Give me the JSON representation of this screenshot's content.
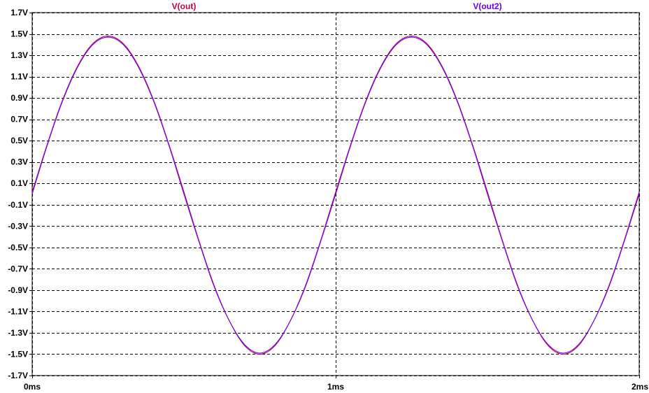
{
  "chart_data": {
    "type": "line",
    "title": "",
    "xlabel": "",
    "ylabel": "",
    "xlim": [
      0,
      2
    ],
    "ylim": [
      -1.7,
      1.7
    ],
    "x_unit": "ms",
    "y_unit": "V",
    "grid": true,
    "legend_position": "top",
    "x_ticks": [
      "0ms",
      "1ms",
      "2ms"
    ],
    "x_tick_values": [
      0,
      1,
      2
    ],
    "y_ticks": [
      "1.7V",
      "1.5V",
      "1.3V",
      "1.1V",
      "0.9V",
      "0.7V",
      "0.5V",
      "0.3V",
      "0.1V",
      "-0.1V",
      "-0.3V",
      "-0.5V",
      "-0.7V",
      "-0.9V",
      "-1.1V",
      "-1.3V",
      "-1.5V",
      "-1.7V"
    ],
    "y_tick_values": [
      1.7,
      1.5,
      1.3,
      1.1,
      0.9,
      0.7,
      0.5,
      0.3,
      0.1,
      -0.1,
      -0.3,
      -0.5,
      -0.7,
      -0.9,
      -1.1,
      -1.3,
      -1.5,
      -1.7
    ],
    "series": [
      {
        "name": "V(out)",
        "color": "#c0003c",
        "x": [
          0,
          0.05,
          0.1,
          0.15,
          0.2,
          0.25,
          0.3,
          0.35,
          0.4,
          0.45,
          0.5,
          0.55,
          0.6,
          0.65,
          0.7,
          0.75,
          0.8,
          0.85,
          0.9,
          0.95,
          1.0,
          1.05,
          1.1,
          1.15,
          1.2,
          1.25,
          1.3,
          1.35,
          1.4,
          1.45,
          1.5,
          1.55,
          1.6,
          1.65,
          1.7,
          1.75,
          1.8,
          1.85,
          1.9,
          1.95,
          2.0
        ],
        "values": [
          0.02,
          0.47,
          0.88,
          1.2,
          1.41,
          1.48,
          1.41,
          1.2,
          0.88,
          0.47,
          0.02,
          -0.44,
          -0.86,
          -1.19,
          -1.42,
          -1.5,
          -1.42,
          -1.19,
          -0.86,
          -0.44,
          0.02,
          0.47,
          0.88,
          1.2,
          1.41,
          1.48,
          1.41,
          1.2,
          0.88,
          0.47,
          0.02,
          -0.44,
          -0.86,
          -1.19,
          -1.42,
          -1.5,
          -1.42,
          -1.19,
          -0.86,
          -0.44,
          0.02
        ]
      },
      {
        "name": "V(out2)",
        "color": "#6600ff",
        "x": [
          0,
          0.05,
          0.1,
          0.15,
          0.2,
          0.25,
          0.3,
          0.35,
          0.4,
          0.45,
          0.5,
          0.55,
          0.6,
          0.65,
          0.7,
          0.75,
          0.8,
          0.85,
          0.9,
          0.95,
          1.0,
          1.05,
          1.1,
          1.15,
          1.2,
          1.25,
          1.3,
          1.35,
          1.4,
          1.45,
          1.5,
          1.55,
          1.6,
          1.65,
          1.7,
          1.75,
          1.8,
          1.85,
          1.9,
          1.95,
          2.0
        ],
        "values": [
          0.0,
          0.46,
          0.87,
          1.19,
          1.4,
          1.47,
          1.4,
          1.19,
          0.87,
          0.46,
          0.0,
          -0.45,
          -0.87,
          -1.19,
          -1.41,
          -1.49,
          -1.41,
          -1.19,
          -0.87,
          -0.45,
          0.0,
          0.46,
          0.87,
          1.19,
          1.4,
          1.47,
          1.4,
          1.19,
          0.87,
          0.46,
          0.0,
          -0.45,
          -0.87,
          -1.19,
          -1.41,
          -1.49,
          -1.41,
          -1.19,
          -0.87,
          -0.45,
          0.0
        ]
      }
    ]
  }
}
